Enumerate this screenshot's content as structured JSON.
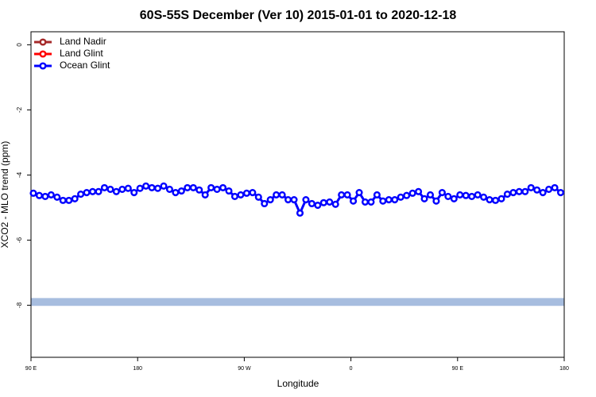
{
  "chart_data": {
    "type": "line",
    "title": "60S-55S December (Ver 10)   2015-01-01 to 2020-12-18",
    "x_label": "Longitude",
    "y_label": "XCO2 - MLO trend (ppm)",
    "xlim": [
      90,
      540
    ],
    "ylim": [
      -9.6,
      0.4
    ],
    "xticks": [
      {
        "value": 90,
        "label": "90 E"
      },
      {
        "value": 180,
        "label": "180"
      },
      {
        "value": 270,
        "label": "90 W"
      },
      {
        "value": 360,
        "label": "0"
      },
      {
        "value": 450,
        "label": "90 E"
      },
      {
        "value": 540,
        "label": "180"
      }
    ],
    "yticks": [
      0,
      -2,
      -4,
      -6,
      -8
    ],
    "legend": "top-left",
    "band": {
      "color": "#a7bddf",
      "ylim": [
        -8.02,
        -7.78
      ]
    },
    "x": [
      92,
      97,
      102,
      107,
      112,
      117,
      122,
      127,
      132,
      137,
      142,
      147,
      152,
      157,
      162,
      167,
      172,
      177,
      182,
      187,
      192,
      197,
      202,
      207,
      212,
      217,
      222,
      227,
      232,
      237,
      242,
      247,
      252,
      257,
      262,
      267,
      272,
      277,
      282,
      287,
      292,
      297,
      302,
      307,
      312,
      317,
      322,
      327,
      332,
      337,
      342,
      347,
      352,
      357,
      362,
      367,
      372,
      377,
      382,
      387,
      392,
      397,
      402,
      407,
      412,
      417,
      422,
      427,
      432,
      437,
      442,
      447,
      452,
      457,
      462,
      467,
      472,
      477,
      482,
      487,
      492,
      497,
      502,
      507,
      512,
      517,
      522,
      527,
      532,
      537
    ],
    "series": [
      {
        "name": "Land Nadir",
        "color": "#a52a2a",
        "values": [
          null,
          null,
          null,
          null,
          null,
          null,
          null,
          null,
          null,
          null,
          null,
          null,
          null,
          null,
          null,
          null,
          null,
          null,
          null,
          null,
          null,
          null,
          null,
          null,
          null,
          null,
          null,
          null,
          null,
          null,
          null,
          null,
          null,
          null,
          null,
          null,
          null,
          null,
          null,
          null,
          null,
          null,
          null,
          null,
          null,
          null,
          null,
          null,
          null,
          null,
          null,
          null,
          null,
          null,
          null,
          null,
          null,
          null,
          null,
          null,
          null,
          null,
          null,
          null,
          null,
          null,
          null,
          null,
          null,
          null,
          null,
          null,
          null,
          null,
          null,
          null,
          null,
          null,
          null,
          null,
          null,
          null,
          null,
          null,
          null,
          null,
          null,
          null,
          null,
          null
        ]
      },
      {
        "name": "Land Glint",
        "color": "#ff0000",
        "values": [
          null,
          null,
          null,
          null,
          null,
          null,
          null,
          null,
          null,
          null,
          null,
          null,
          null,
          null,
          null,
          null,
          null,
          null,
          null,
          null,
          null,
          null,
          null,
          null,
          null,
          null,
          null,
          null,
          null,
          null,
          null,
          null,
          null,
          null,
          null,
          null,
          null,
          null,
          null,
          null,
          null,
          null,
          null,
          null,
          null,
          null,
          null,
          null,
          null,
          null,
          null,
          null,
          null,
          null,
          null,
          null,
          null,
          null,
          null,
          null,
          null,
          null,
          null,
          null,
          null,
          null,
          null,
          null,
          null,
          null,
          null,
          null,
          null,
          null,
          null,
          null,
          null,
          null,
          null,
          null,
          null,
          null,
          null,
          null,
          null,
          null,
          null,
          null,
          null,
          null
        ]
      },
      {
        "name": "Ocean Glint",
        "color": "#0000ff",
        "values": [
          -4.56,
          -4.63,
          -4.66,
          -4.61,
          -4.68,
          -4.78,
          -4.78,
          -4.73,
          -4.59,
          -4.54,
          -4.51,
          -4.51,
          -4.39,
          -4.44,
          -4.51,
          -4.44,
          -4.41,
          -4.54,
          -4.41,
          -4.34,
          -4.39,
          -4.41,
          -4.34,
          -4.44,
          -4.54,
          -4.49,
          -4.39,
          -4.39,
          -4.46,
          -4.61,
          -4.39,
          -4.44,
          -4.39,
          -4.49,
          -4.66,
          -4.61,
          -4.56,
          -4.54,
          -4.68,
          -4.88,
          -4.76,
          -4.61,
          -4.61,
          -4.76,
          -4.76,
          -5.17,
          -4.76,
          -4.88,
          -4.93,
          -4.85,
          -4.83,
          -4.9,
          -4.61,
          -4.61,
          -4.8,
          -4.54,
          -4.83,
          -4.83,
          -4.61,
          -4.8,
          -4.76,
          -4.76,
          -4.68,
          -4.63,
          -4.56,
          -4.51,
          -4.73,
          -4.61,
          -4.8,
          -4.54,
          -4.66,
          -4.73,
          -4.61,
          -4.63,
          -4.66,
          -4.61,
          -4.68,
          -4.76,
          -4.78,
          -4.73,
          -4.59,
          -4.54,
          -4.51,
          -4.51,
          -4.39,
          -4.46,
          -4.54,
          -4.44,
          -4.39,
          -4.54
        ]
      }
    ]
  }
}
